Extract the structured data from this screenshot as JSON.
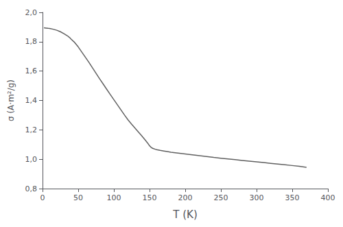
{
  "chart_data": {
    "type": "line",
    "xlabel": "T (K)",
    "ylabel": "σ (A·m²/g)",
    "xlim": [
      0,
      400
    ],
    "ylim": [
      0.8,
      2.0
    ],
    "xticks": [
      0,
      50,
      100,
      150,
      200,
      250,
      300,
      350,
      400
    ],
    "yticks": [
      {
        "value": 0.8,
        "label": "0,8"
      },
      {
        "value": 1.0,
        "label": "1,0"
      },
      {
        "value": 1.2,
        "label": "1,2"
      },
      {
        "value": 1.4,
        "label": "1,4"
      },
      {
        "value": 1.6,
        "label": "1,6"
      },
      {
        "value": 1.8,
        "label": "1,8"
      },
      {
        "value": 2.0,
        "label": "2,0"
      }
    ],
    "grid": false,
    "color": "#606060",
    "x": [
      2,
      5,
      8,
      10,
      15,
      20,
      25,
      30,
      35,
      38,
      40,
      45,
      50,
      55,
      60,
      65,
      70,
      75,
      80,
      85,
      90,
      95,
      100,
      105,
      110,
      115,
      120,
      125,
      130,
      135,
      138,
      141,
      144,
      147,
      150,
      152,
      153,
      155,
      158,
      160,
      165,
      170,
      175,
      180,
      190,
      200,
      210,
      220,
      230,
      240,
      250,
      260,
      270,
      280,
      290,
      300,
      310,
      320,
      330,
      340,
      350,
      360,
      370
    ],
    "values": [
      1.895,
      1.893,
      1.891,
      1.89,
      1.885,
      1.878,
      1.868,
      1.855,
      1.84,
      1.828,
      1.818,
      1.795,
      1.765,
      1.73,
      1.695,
      1.66,
      1.622,
      1.585,
      1.548,
      1.512,
      1.476,
      1.44,
      1.405,
      1.37,
      1.335,
      1.3,
      1.267,
      1.238,
      1.21,
      1.182,
      1.165,
      1.148,
      1.13,
      1.112,
      1.092,
      1.082,
      1.078,
      1.073,
      1.068,
      1.065,
      1.06,
      1.056,
      1.052,
      1.048,
      1.042,
      1.036,
      1.03,
      1.024,
      1.018,
      1.012,
      1.007,
      1.002,
      0.997,
      0.992,
      0.987,
      0.982,
      0.977,
      0.972,
      0.967,
      0.962,
      0.957,
      0.952,
      0.945
    ]
  }
}
